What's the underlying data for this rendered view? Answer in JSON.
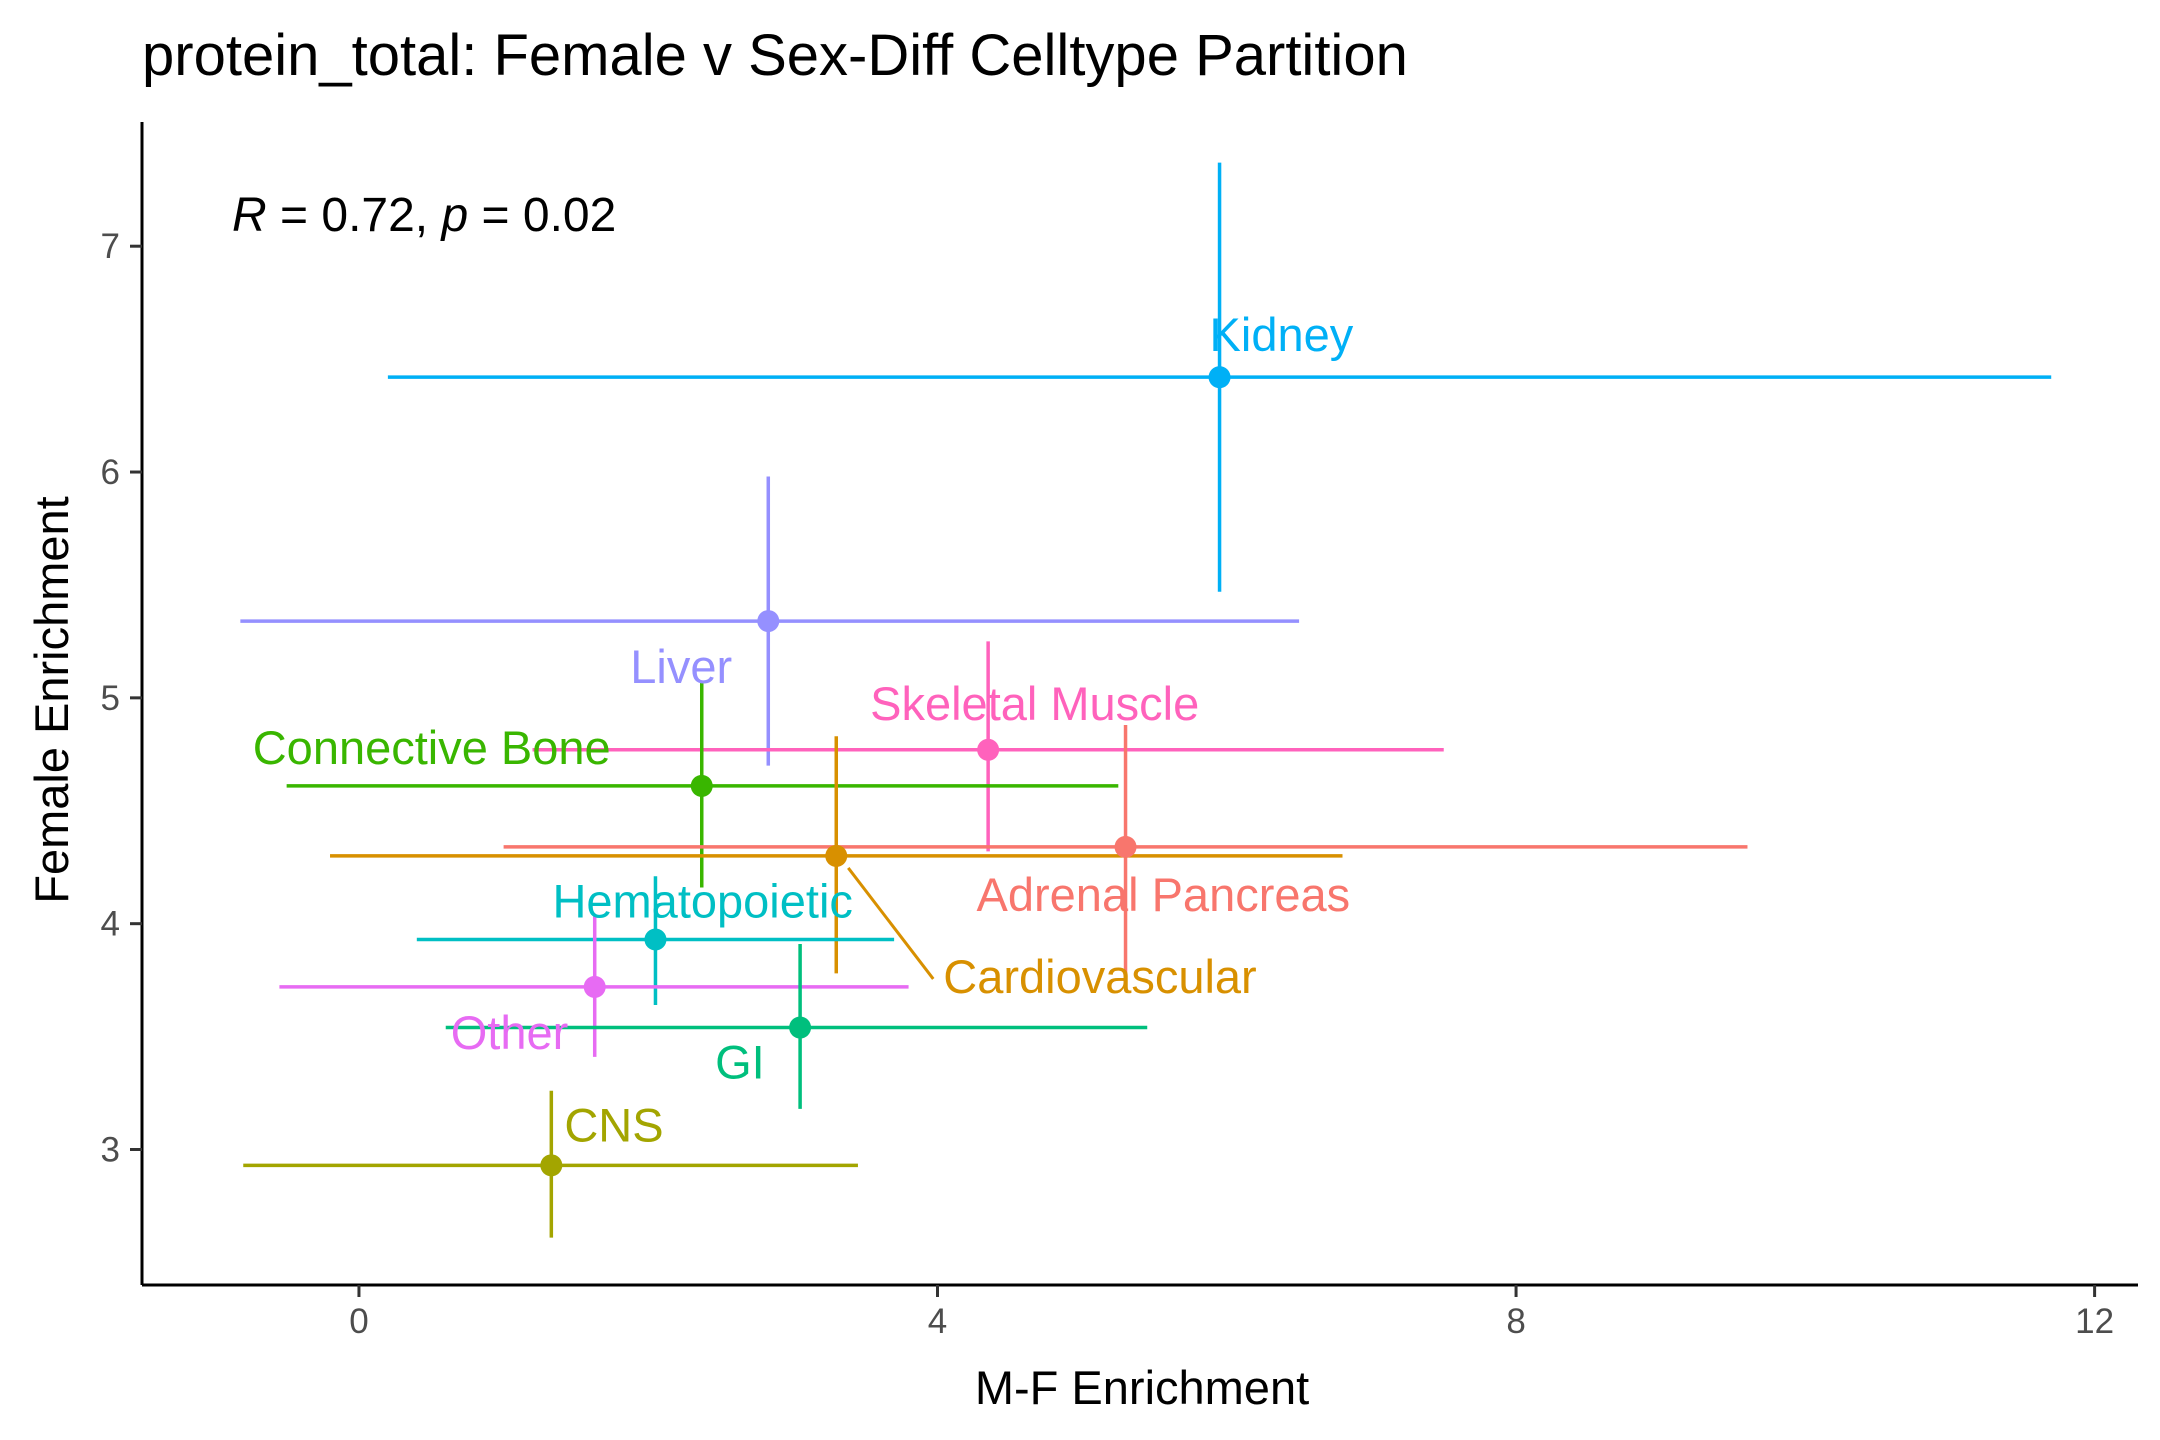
{
  "chart_data": {
    "type": "scatter",
    "title": "protein_total: Female v Sex-Diff Celltype Partition",
    "xlabel": "M-F Enrichment",
    "ylabel": "Female Enrichment",
    "xlim": [
      -1.5,
      12.3
    ],
    "ylim": [
      2.4,
      7.55
    ],
    "xticks": [
      0,
      4,
      8,
      12
    ],
    "yticks": [
      3,
      4,
      5,
      6,
      7
    ],
    "grid": false,
    "legend": "none",
    "annotation": {
      "r_symbol": "R",
      "r_text": " = 0.72, ",
      "p_symbol": "p",
      "p_text": " = 0.02"
    },
    "points": [
      {
        "label": "Kidney",
        "x": 5.95,
        "y": 6.42,
        "xmin": 0.2,
        "xmax": 11.7,
        "ymin": 5.47,
        "ymax": 7.37,
        "color": "#00B0F6"
      },
      {
        "label": "Liver",
        "x": 2.83,
        "y": 5.34,
        "xmin": -0.82,
        "xmax": 6.5,
        "ymin": 4.7,
        "ymax": 5.98,
        "color": "#9590FF"
      },
      {
        "label": "Skeletal Muscle",
        "x": 4.35,
        "y": 4.77,
        "xmin": 1.2,
        "xmax": 7.5,
        "ymin": 4.32,
        "ymax": 5.25,
        "color": "#FF62BC"
      },
      {
        "label": "Connective Bone",
        "x": 2.37,
        "y": 4.61,
        "xmin": -0.5,
        "xmax": 5.25,
        "ymin": 4.16,
        "ymax": 5.07,
        "color": "#39B600"
      },
      {
        "label": "Adrenal Pancreas",
        "x": 5.3,
        "y": 4.34,
        "xmin": 1.0,
        "xmax": 9.6,
        "ymin": 3.78,
        "ymax": 4.88,
        "color": "#F8766D"
      },
      {
        "label": "Cardiovascular",
        "x": 3.3,
        "y": 4.3,
        "xmin": -0.2,
        "xmax": 6.8,
        "ymin": 3.78,
        "ymax": 4.83,
        "color": "#D89000"
      },
      {
        "label": "Hematopoietic",
        "x": 2.05,
        "y": 3.93,
        "xmin": 0.4,
        "xmax": 3.7,
        "ymin": 3.64,
        "ymax": 4.21,
        "color": "#00BFC4"
      },
      {
        "label": "Other",
        "x": 1.63,
        "y": 3.72,
        "xmin": -0.55,
        "xmax": 3.8,
        "ymin": 3.41,
        "ymax": 4.04,
        "color": "#E76BF3"
      },
      {
        "label": "GI",
        "x": 3.05,
        "y": 3.54,
        "xmin": 0.6,
        "xmax": 5.45,
        "ymin": 3.18,
        "ymax": 3.91,
        "color": "#00BF7D"
      },
      {
        "label": "CNS",
        "x": 1.33,
        "y": 2.93,
        "xmin": -0.8,
        "xmax": 3.45,
        "ymin": 2.61,
        "ymax": 3.26,
        "color": "#A3A500"
      }
    ]
  }
}
